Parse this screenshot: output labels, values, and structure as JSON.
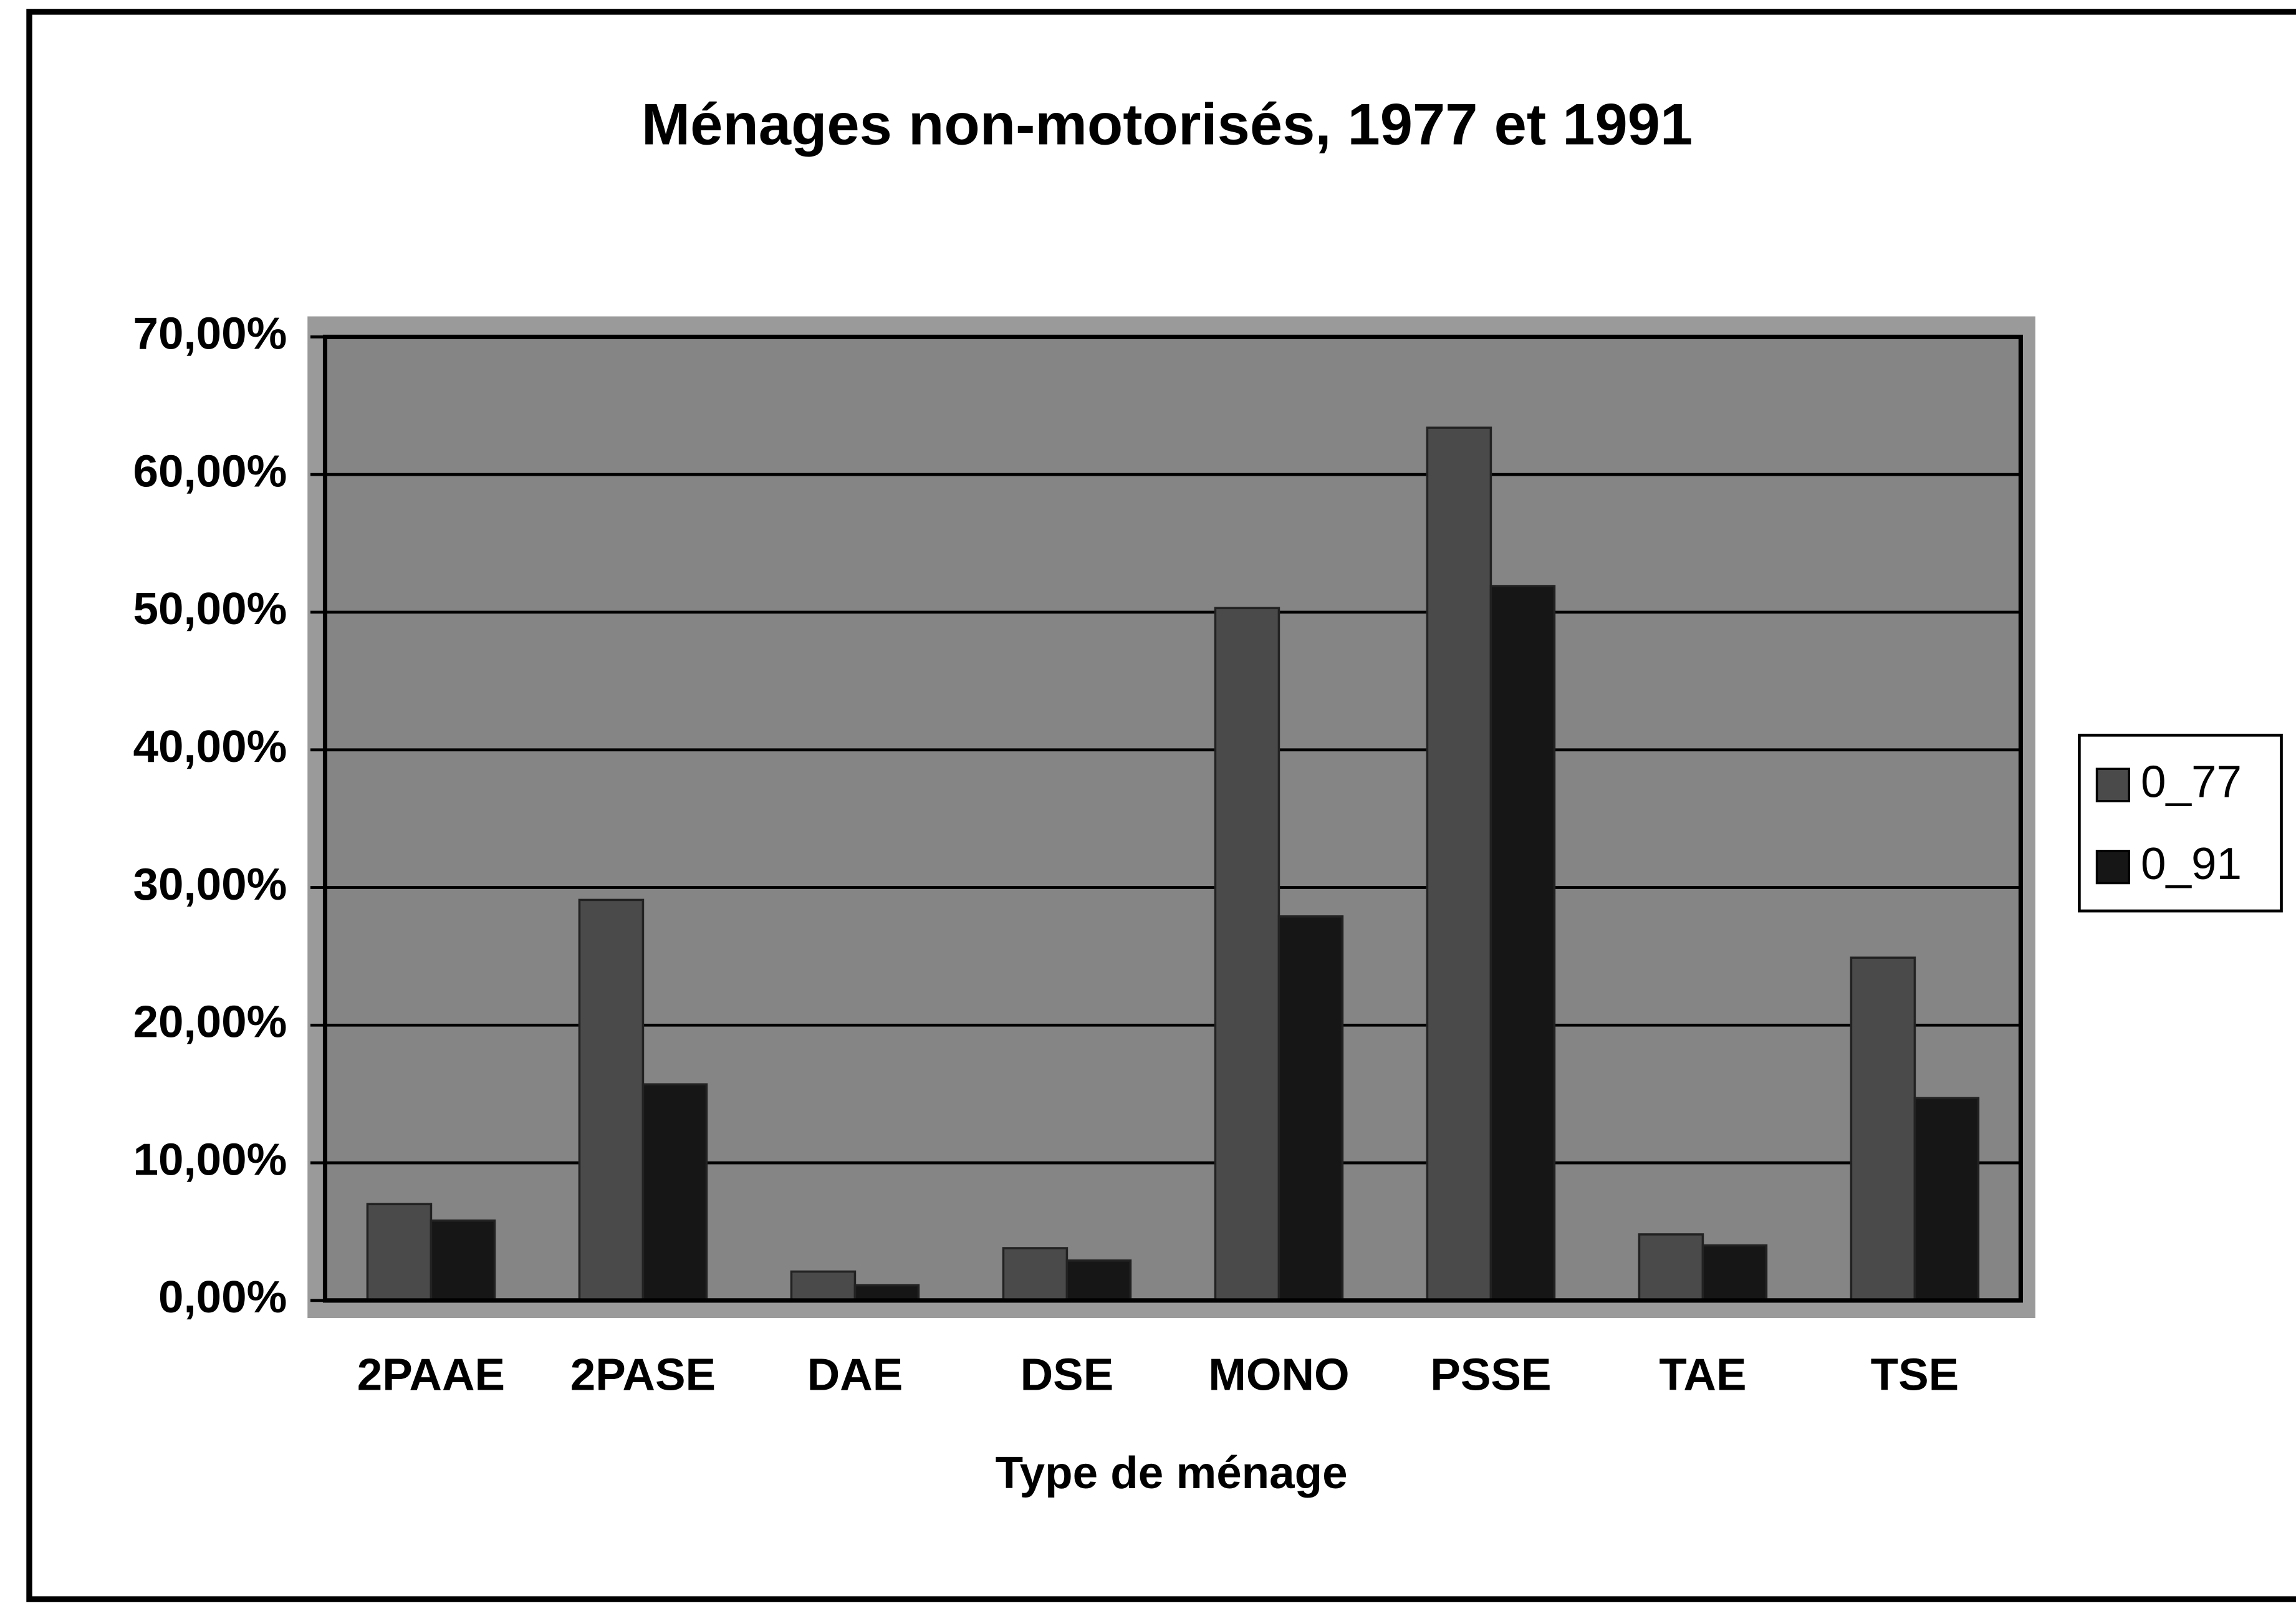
{
  "chart_data": {
    "type": "bar",
    "title": "Ménages non-motorisés, 1977 et 1991",
    "x_label": "Type de ménage",
    "categories": [
      "2PAAE",
      "2PASE",
      "DAE",
      "DSE",
      "MONO",
      "PSSE",
      "TAE",
      "TSE"
    ],
    "series": [
      {
        "name": "0_77",
        "color": "#4a4a4a",
        "values": [
          7.0,
          29.1,
          2.1,
          3.8,
          50.3,
          63.4,
          4.8,
          24.9
        ]
      },
      {
        "name": "0_91",
        "color": "#161616",
        "values": [
          5.8,
          15.7,
          1.1,
          2.9,
          27.9,
          51.9,
          4.0,
          14.7
        ]
      }
    ],
    "ylim": [
      0,
      70
    ],
    "yticks": [
      {
        "value": 0,
        "label": "0,00%"
      },
      {
        "value": 10,
        "label": "10,00%"
      },
      {
        "value": 20,
        "label": "20,00%"
      },
      {
        "value": 30,
        "label": "30,00%"
      },
      {
        "value": 40,
        "label": "40,00%"
      },
      {
        "value": 50,
        "label": "50,00%"
      },
      {
        "value": 60,
        "label": "60,00%"
      },
      {
        "value": 70,
        "label": "70,00%"
      }
    ],
    "grid": true,
    "legend": "right"
  }
}
